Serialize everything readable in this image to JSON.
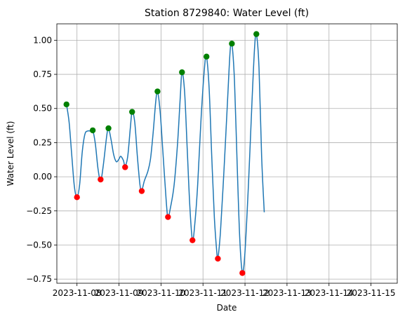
{
  "chart_data": {
    "type": "line",
    "title": "Station 8729840: Water Level (ft)",
    "xlabel": "Date",
    "ylabel": "Water Level (ft)",
    "xlim": [
      "2023-11-07T12:30",
      "2023-11-15T15:00"
    ],
    "ylim": [
      -0.78,
      1.12
    ],
    "grid": true,
    "x_ticks": [
      "2023-11-08",
      "2023-11-09",
      "2023-11-10",
      "2023-11-11",
      "2023-11-12",
      "2023-11-13",
      "2023-11-14",
      "2023-11-15"
    ],
    "y_ticks": [
      -0.75,
      -0.5,
      -0.25,
      0.0,
      0.25,
      0.5,
      0.75,
      1.0
    ],
    "y_tick_labels": [
      "−0.75",
      "−0.50",
      "−0.25",
      "0.00",
      "0.25",
      "0.50",
      "0.75",
      "1.00"
    ],
    "series": [
      {
        "kind": "line",
        "color": "#1f77b4",
        "points": [
          [
            "2023-11-07T18:00",
            0.53
          ],
          [
            "2023-11-07T19:30",
            0.4
          ],
          [
            "2023-11-07T21:00",
            0.16
          ],
          [
            "2023-11-07T22:30",
            -0.07
          ],
          [
            "2023-11-08T00:00",
            -0.15
          ],
          [
            "2023-11-08T01:30",
            -0.06
          ],
          [
            "2023-11-08T03:00",
            0.18
          ],
          [
            "2023-11-08T04:30",
            0.31
          ],
          [
            "2023-11-08T06:00",
            0.335
          ],
          [
            "2023-11-08T08:00",
            0.335
          ],
          [
            "2023-11-08T09:00",
            0.34
          ],
          [
            "2023-11-08T10:30",
            0.24
          ],
          [
            "2023-11-08T12:00",
            0.06
          ],
          [
            "2023-11-08T13:30",
            -0.03
          ],
          [
            "2023-11-08T15:00",
            0.08
          ],
          [
            "2023-11-08T17:00",
            0.3
          ],
          [
            "2023-11-08T18:00",
            0.355
          ],
          [
            "2023-11-08T19:30",
            0.27
          ],
          [
            "2023-11-08T21:00",
            0.16
          ],
          [
            "2023-11-08T22:30",
            0.11
          ],
          [
            "2023-11-09T00:00",
            0.13
          ],
          [
            "2023-11-09T01:00",
            0.15
          ],
          [
            "2023-11-09T02:30",
            0.12
          ],
          [
            "2023-11-09T03:30",
            0.08
          ],
          [
            "2023-11-09T05:00",
            0.15
          ],
          [
            "2023-11-09T06:30",
            0.36
          ],
          [
            "2023-11-09T07:30",
            0.475
          ],
          [
            "2023-11-09T09:00",
            0.4
          ],
          [
            "2023-11-09T10:30",
            0.15
          ],
          [
            "2023-11-09T12:00",
            -0.06
          ],
          [
            "2023-11-09T13:00",
            -0.1
          ],
          [
            "2023-11-09T14:30",
            -0.03
          ],
          [
            "2023-11-09T16:30",
            0.04
          ],
          [
            "2023-11-09T18:00",
            0.13
          ],
          [
            "2023-11-09T19:30",
            0.32
          ],
          [
            "2023-11-09T21:00",
            0.55
          ],
          [
            "2023-11-09T22:00",
            0.625
          ],
          [
            "2023-11-09T23:30",
            0.48
          ],
          [
            "2023-11-10T01:00",
            0.2
          ],
          [
            "2023-11-10T03:00",
            -0.18
          ],
          [
            "2023-11-10T04:00",
            -0.295
          ],
          [
            "2023-11-10T05:30",
            -0.22
          ],
          [
            "2023-11-10T07:30",
            -0.06
          ],
          [
            "2023-11-10T09:30",
            0.25
          ],
          [
            "2023-11-10T11:00",
            0.58
          ],
          [
            "2023-11-10T12:00",
            0.765
          ],
          [
            "2023-11-10T13:30",
            0.62
          ],
          [
            "2023-11-10T15:00",
            0.2
          ],
          [
            "2023-11-10T16:30",
            -0.22
          ],
          [
            "2023-11-10T18:00",
            -0.465
          ],
          [
            "2023-11-10T19:30",
            -0.32
          ],
          [
            "2023-11-10T21:00",
            -0.05
          ],
          [
            "2023-11-10T23:00",
            0.45
          ],
          [
            "2023-11-11T01:00",
            0.82
          ],
          [
            "2023-11-11T02:00",
            0.88
          ],
          [
            "2023-11-11T03:30",
            0.65
          ],
          [
            "2023-11-11T05:00",
            0.15
          ],
          [
            "2023-11-11T06:30",
            -0.3
          ],
          [
            "2023-11-11T08:00",
            -0.57
          ],
          [
            "2023-11-11T08:30",
            -0.6
          ],
          [
            "2023-11-11T10:00",
            -0.4
          ],
          [
            "2023-11-11T12:00",
            0.05
          ],
          [
            "2023-11-11T14:00",
            0.55
          ],
          [
            "2023-11-11T15:30",
            0.92
          ],
          [
            "2023-11-11T16:30",
            0.975
          ],
          [
            "2023-11-11T18:00",
            0.7
          ],
          [
            "2023-11-11T19:30",
            0.1
          ],
          [
            "2023-11-11T21:00",
            -0.45
          ],
          [
            "2023-11-11T22:30",
            -0.7
          ],
          [
            "2023-11-12T00:00",
            -0.55
          ],
          [
            "2023-11-12T02:00",
            -0.05
          ],
          [
            "2023-11-12T04:00",
            0.55
          ],
          [
            "2023-11-12T05:30",
            0.95
          ],
          [
            "2023-11-12T06:30",
            1.045
          ],
          [
            "2023-11-12T08:00",
            0.8
          ],
          [
            "2023-11-12T09:30",
            0.15
          ],
          [
            "2023-11-12T11:00",
            -0.26
          ]
        ]
      },
      {
        "kind": "scatter",
        "color": "#008000",
        "points": [
          [
            "2023-11-07T18:00",
            0.53
          ],
          [
            "2023-11-08T09:00",
            0.34
          ],
          [
            "2023-11-08T18:00",
            0.355
          ],
          [
            "2023-11-09T07:30",
            0.475
          ],
          [
            "2023-11-09T22:00",
            0.625
          ],
          [
            "2023-11-10T12:00",
            0.765
          ],
          [
            "2023-11-11T02:00",
            0.88
          ],
          [
            "2023-11-11T16:30",
            0.975
          ],
          [
            "2023-11-12T06:30",
            1.045
          ]
        ]
      },
      {
        "kind": "scatter",
        "color": "#ff0000",
        "points": [
          [
            "2023-11-08T00:00",
            -0.15
          ],
          [
            "2023-11-08T13:30",
            -0.02
          ],
          [
            "2023-11-09T03:30",
            0.07
          ],
          [
            "2023-11-09T13:00",
            -0.105
          ],
          [
            "2023-11-10T04:00",
            -0.295
          ],
          [
            "2023-11-10T18:00",
            -0.465
          ],
          [
            "2023-11-11T08:30",
            -0.6
          ],
          [
            "2023-11-11T22:30",
            -0.705
          ]
        ]
      }
    ]
  }
}
